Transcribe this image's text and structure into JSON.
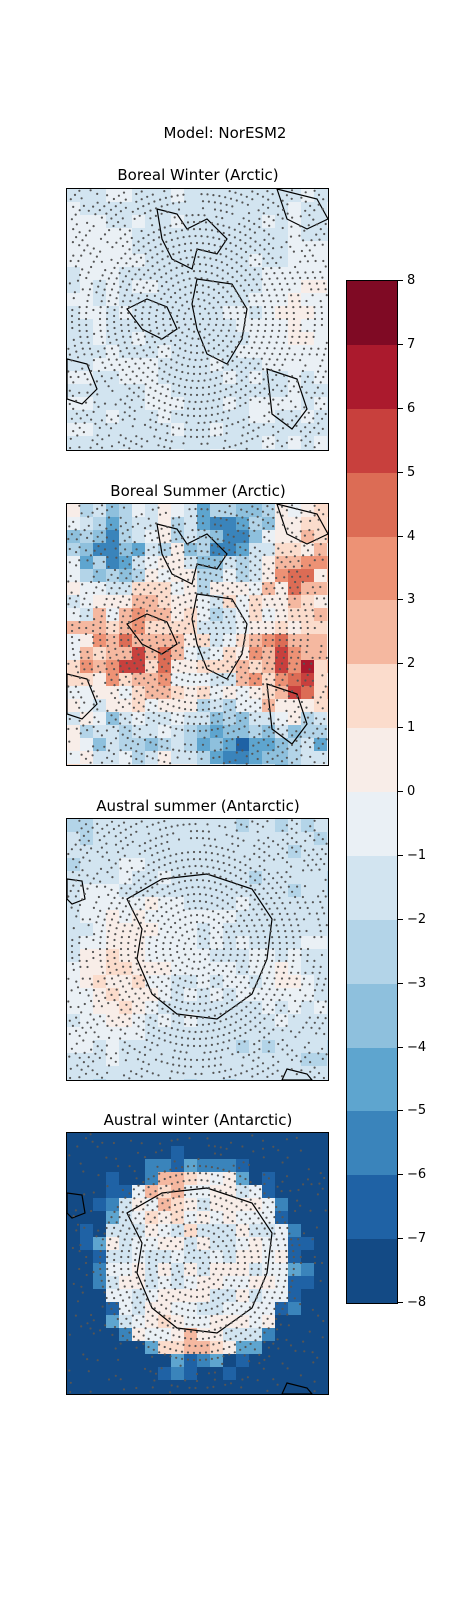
{
  "figure": {
    "suptitle": "Model: NorESM2"
  },
  "chart_data": [
    {
      "type": "heatmap",
      "title": "Boreal Winter (Arctic)",
      "projection": "north-polar-stereographic",
      "stippling": "dots mark grid points (dense over polar cap)",
      "pattern": "weak negative (light blue) over most of the Arctic, weak positive (light red) patches near the margins",
      "value_range": [
        -2,
        1
      ]
    },
    {
      "type": "heatmap",
      "title": "Boreal Summer (Arctic)",
      "projection": "north-polar-stereographic",
      "stippling": "dots mark grid points (dense over polar cap)",
      "pattern": "mixed: positive anomalies (red) over Greenland/Canadian Archipelago and Siberian sector, negative (blue) over parts of North America and Eurasia",
      "value_range": [
        -6,
        6
      ]
    },
    {
      "type": "heatmap",
      "title": "Austral summer (Antarctic)",
      "projection": "south-polar-stereographic",
      "stippling": "dots mark grid points (dense over Antarctic continent)",
      "pattern": "weak negative (light blue) over Southern Ocean, weak positive (light red) in Atlantic/Weddell sector",
      "value_range": [
        -3,
        2
      ]
    },
    {
      "type": "heatmap",
      "title": "Austral winter (Antarctic)",
      "projection": "south-polar-stereographic",
      "stippling": "dots mark grid points (dense over Antarctic continent)",
      "pattern": "strong negative (dark blue, below -8) over the surrounding ocean, near-zero / weak positive over the continent",
      "value_range": [
        -8,
        2
      ]
    }
  ],
  "colorbar": {
    "min": -8,
    "max": 8,
    "step": 1,
    "ticks": [
      "8",
      "7",
      "6",
      "5",
      "4",
      "3",
      "2",
      "1",
      "0",
      "−1",
      "−2",
      "−3",
      "−4",
      "−5",
      "−6",
      "−7",
      "−8"
    ],
    "colors_top_to_bottom": [
      "#7f0a24",
      "#ab1a2d",
      "#c8403d",
      "#dc6c55",
      "#ed9275",
      "#f5b8a0",
      "#fbdccc",
      "#f8ede8",
      "#eaf0f5",
      "#d2e4f0",
      "#b3d4e8",
      "#8ec0dd",
      "#5ea5cf",
      "#3a84bb",
      "#1f62a5",
      "#134a85"
    ]
  },
  "colors": {
    "land_outline": "#000000",
    "stipple_dot": "#555555",
    "ocean_deep": "#0b3b70"
  }
}
